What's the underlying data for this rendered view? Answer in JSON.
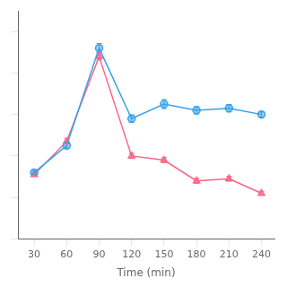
{
  "chart_data": {
    "type": "line",
    "xlabel": "Time (min)",
    "x": [
      30,
      60,
      90,
      120,
      150,
      180,
      210,
      240
    ],
    "series": [
      {
        "values": [
          3.2,
          4.5,
          9.2,
          5.8,
          6.5,
          6.2,
          6.3,
          6.0
        ],
        "errors": [
          0.08,
          0.12,
          0.22,
          0.18,
          0.22,
          0.18,
          0.18,
          0.12
        ],
        "marker": "circle",
        "line_style": "solid"
      },
      {
        "values": [
          3.1,
          4.7,
          8.8,
          4.0,
          3.8,
          2.8,
          2.9,
          2.2
        ],
        "errors": [
          0.08,
          0.12,
          0.18,
          0.12,
          0.12,
          0.12,
          0.12,
          0.1
        ],
        "marker": "triangle",
        "line_style": "solid"
      }
    ],
    "xlim": [
      15,
      252
    ],
    "xticks": [
      30,
      60,
      90,
      120,
      150,
      180,
      210,
      240
    ],
    "ylim": [
      0,
      11
    ],
    "yticks": [
      0,
      2,
      4,
      6,
      8,
      10
    ],
    "grid": false,
    "tick_labels": "x"
  }
}
